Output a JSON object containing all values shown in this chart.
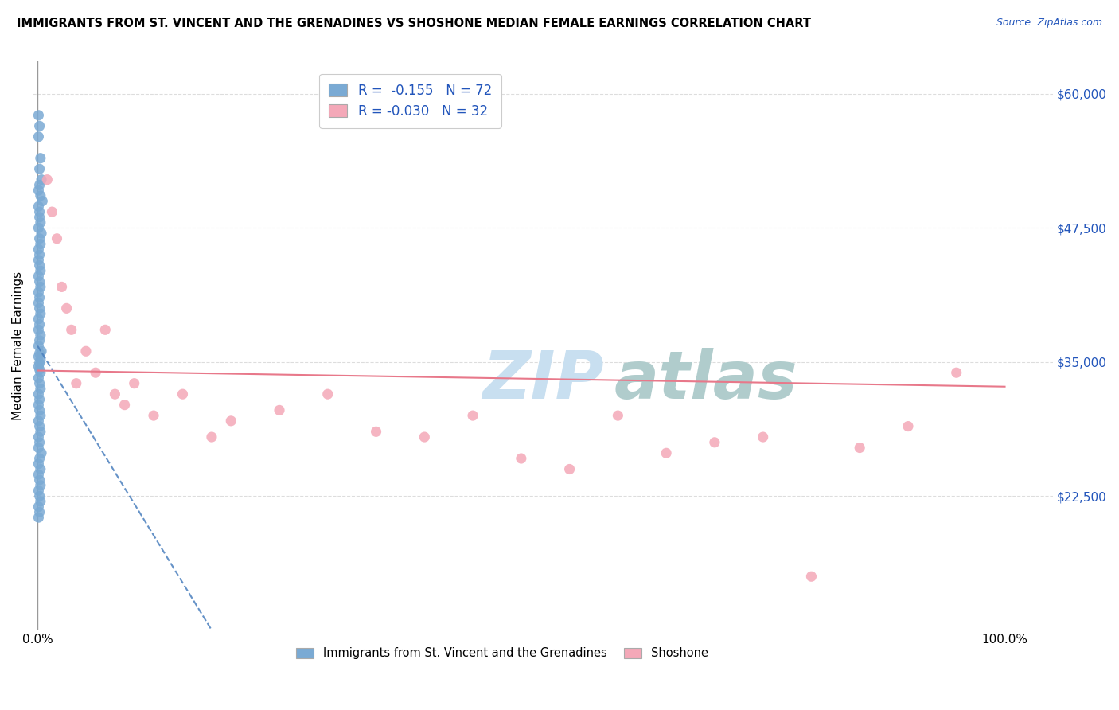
{
  "title": "IMMIGRANTS FROM ST. VINCENT AND THE GRENADINES VS SHOSHONE MEDIAN FEMALE EARNINGS CORRELATION CHART",
  "source": "Source: ZipAtlas.com",
  "ylabel": "Median Female Earnings",
  "ylim": [
    10000,
    63000
  ],
  "xlim": [
    -0.005,
    1.05
  ],
  "blue_R": "-0.155",
  "blue_N": "72",
  "pink_R": "-0.030",
  "pink_N": "32",
  "blue_color": "#7aaad4",
  "pink_color": "#f4a8b8",
  "blue_line_color": "#4a7fbd",
  "pink_line_color": "#e8788a",
  "grid_color": "#dddddd",
  "background_color": "#ffffff",
  "blue_scatter_x": [
    0.001,
    0.002,
    0.001,
    0.003,
    0.002,
    0.004,
    0.002,
    0.001,
    0.003,
    0.005,
    0.001,
    0.002,
    0.002,
    0.003,
    0.001,
    0.004,
    0.002,
    0.003,
    0.001,
    0.002,
    0.001,
    0.002,
    0.003,
    0.001,
    0.002,
    0.003,
    0.001,
    0.002,
    0.001,
    0.002,
    0.003,
    0.001,
    0.002,
    0.001,
    0.003,
    0.002,
    0.001,
    0.004,
    0.002,
    0.001,
    0.003,
    0.002,
    0.001,
    0.002,
    0.003,
    0.001,
    0.002,
    0.003,
    0.001,
    0.002,
    0.001,
    0.002,
    0.003,
    0.001,
    0.002,
    0.003,
    0.001,
    0.002,
    0.001,
    0.004,
    0.002,
    0.001,
    0.003,
    0.001,
    0.002,
    0.003,
    0.001,
    0.002,
    0.003,
    0.001,
    0.002,
    0.001
  ],
  "blue_scatter_y": [
    58000,
    57000,
    56000,
    54000,
    53000,
    52000,
    51500,
    51000,
    50500,
    50000,
    49500,
    49000,
    48500,
    48000,
    47500,
    47000,
    46500,
    46000,
    45500,
    45000,
    44500,
    44000,
    43500,
    43000,
    42500,
    42000,
    41500,
    41000,
    40500,
    40000,
    39500,
    39000,
    38500,
    38000,
    37500,
    37000,
    36500,
    36000,
    35800,
    35500,
    35200,
    34900,
    34600,
    34300,
    34000,
    33500,
    33000,
    32500,
    32000,
    31500,
    31000,
    30500,
    30000,
    29500,
    29000,
    28500,
    28000,
    27500,
    27000,
    26500,
    26000,
    25500,
    25000,
    24500,
    24000,
    23500,
    23000,
    22500,
    22000,
    21500,
    21000,
    20500
  ],
  "pink_scatter_x": [
    0.01,
    0.015,
    0.02,
    0.025,
    0.03,
    0.035,
    0.04,
    0.05,
    0.06,
    0.07,
    0.08,
    0.09,
    0.1,
    0.12,
    0.15,
    0.18,
    0.2,
    0.25,
    0.3,
    0.35,
    0.4,
    0.45,
    0.5,
    0.55,
    0.6,
    0.65,
    0.7,
    0.75,
    0.8,
    0.85,
    0.9,
    0.95
  ],
  "pink_scatter_y": [
    52000,
    49000,
    46500,
    42000,
    40000,
    38000,
    33000,
    36000,
    34000,
    38000,
    32000,
    31000,
    33000,
    30000,
    32000,
    28000,
    29500,
    30500,
    32000,
    28500,
    28000,
    30000,
    26000,
    25000,
    30000,
    26500,
    27500,
    28000,
    15000,
    27000,
    29000,
    34000
  ],
  "blue_line_x": [
    0.0,
    0.18
  ],
  "blue_line_y": [
    36500,
    10000
  ],
  "pink_line_x": [
    0.0,
    1.0
  ],
  "pink_line_y": [
    34200,
    32700
  ],
  "ytick_positions": [
    22500,
    35000,
    47500,
    60000
  ],
  "ytick_labels": [
    "$22,500",
    "$35,000",
    "$47,500",
    "$60,000"
  ],
  "xtick_positions": [
    0.0,
    0.2,
    0.4,
    0.6,
    0.8,
    1.0
  ],
  "xtick_labels": [
    "0.0%",
    "",
    "",
    "",
    "",
    "100.0%"
  ]
}
